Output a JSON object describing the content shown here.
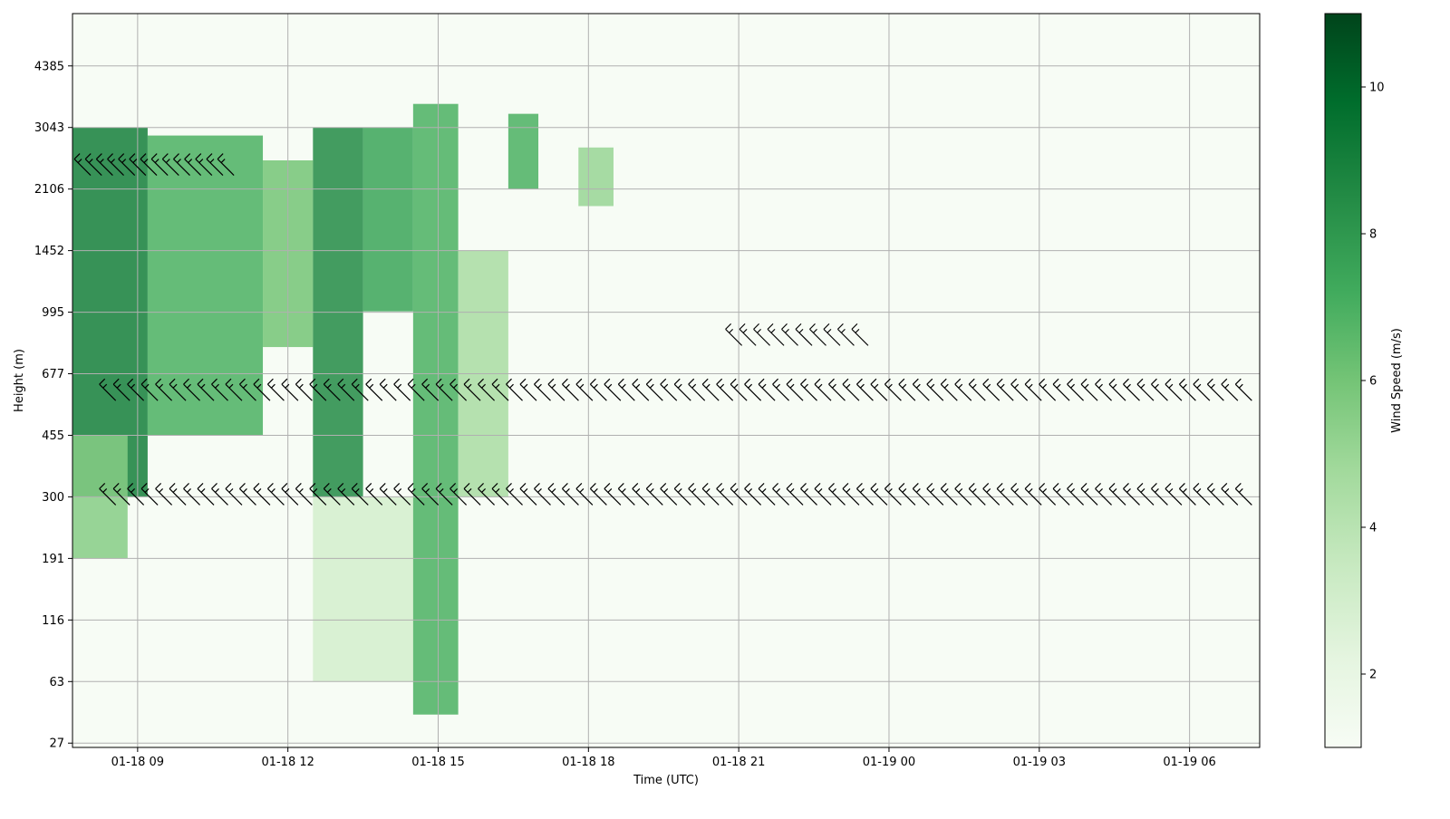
{
  "chart_data": {
    "type": "heatmap",
    "title": "",
    "xlabel": "Time (UTC)",
    "ylabel": "Height (m)",
    "x_ticks": [
      "01-18 09",
      "01-18 12",
      "01-18 15",
      "01-18 18",
      "01-18 21",
      "01-19 00",
      "01-19 03",
      "01-19 06"
    ],
    "x_tick_hours": [
      9,
      12,
      15,
      18,
      21,
      24,
      27,
      30
    ],
    "xlim_hours": [
      7.7,
      31.4
    ],
    "y_ticks": [
      "27",
      "63",
      "116",
      "191",
      "300",
      "455",
      "677",
      "995",
      "1452",
      "2106",
      "3043",
      "4385"
    ],
    "y_tick_values": [
      27,
      63,
      116,
      191,
      300,
      455,
      677,
      995,
      1452,
      2106,
      3043,
      4385
    ],
    "ylim_index": [
      -0.07,
      11.85
    ],
    "grid": true,
    "colormap": "Greens",
    "colorbar": {
      "label": "Wind Speed (m/s)",
      "ticks": [
        "2",
        "4",
        "6",
        "8",
        "10"
      ],
      "tick_values": [
        2,
        4,
        6,
        8,
        10
      ],
      "range": [
        1.0,
        11.0
      ]
    },
    "colors": {
      "low": "#f7fcf5",
      "mid_low": "#c7e9c0",
      "mid": "#74c476",
      "mid_high": "#238b45",
      "high": "#00441b",
      "barb": "#000000",
      "grid": "#b0b0b0"
    },
    "wind_speed_regions": [
      {
        "t_start": 7.7,
        "t_end": 9.2,
        "h_start": 300,
        "h_end": 3043,
        "speed": 9.0
      },
      {
        "t_start": 7.7,
        "t_end": 8.8,
        "h_start": 191,
        "h_end": 455,
        "speed": 5.5
      },
      {
        "t_start": 9.2,
        "t_end": 11.5,
        "h_start": 455,
        "h_end": 2900,
        "speed": 7.0
      },
      {
        "t_start": 11.5,
        "t_end": 12.5,
        "h_start": 800,
        "h_end": 2500,
        "speed": 6.0
      },
      {
        "t_start": 12.5,
        "t_end": 13.5,
        "h_start": 300,
        "h_end": 3043,
        "speed": 8.5
      },
      {
        "t_start": 13.5,
        "t_end": 14.5,
        "h_start": 1000,
        "h_end": 3043,
        "speed": 7.5
      },
      {
        "t_start": 12.5,
        "t_end": 14.5,
        "h_start": 63,
        "h_end": 300,
        "speed": 3.0
      },
      {
        "t_start": 14.5,
        "t_end": 15.4,
        "h_start": 40,
        "h_end": 3500,
        "speed": 7.0
      },
      {
        "t_start": 15.4,
        "t_end": 16.4,
        "h_start": 300,
        "h_end": 1452,
        "speed": 4.5
      },
      {
        "t_start": 16.4,
        "t_end": 17.0,
        "h_start": 2106,
        "h_end": 3300,
        "speed": 7.0
      },
      {
        "t_start": 17.8,
        "t_end": 18.5,
        "h_start": 1900,
        "h_end": 2700,
        "speed": 5.0
      }
    ],
    "wind_barb_rows": [
      {
        "height": 300,
        "t_start": 8.4,
        "t_end": 31.1,
        "step": 0.28
      },
      {
        "height": 600,
        "t_start": 8.4,
        "t_end": 31.1,
        "step": 0.28
      },
      {
        "height": 850,
        "t_start": 20.9,
        "t_end": 23.5,
        "step": 0.28
      },
      {
        "height": 2400,
        "t_start": 7.9,
        "t_end": 10.8,
        "step": 0.22
      }
    ]
  }
}
